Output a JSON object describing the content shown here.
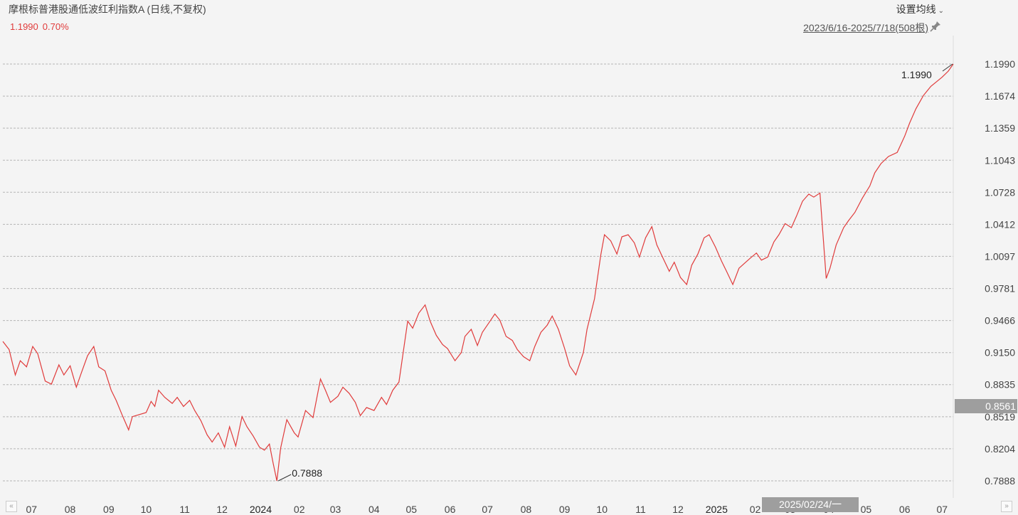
{
  "header": {
    "title": "摩根标普港股通低波红利指数A (日线,不复权)",
    "last_price": "1.1990",
    "change_pct": "0.70%",
    "settings_label": "设置均线",
    "range_label": "2023/6/16-2025/7/18(508根)"
  },
  "colors": {
    "line": "#e03b3b",
    "grid": "#b5b5b5",
    "cursor": "#9e9e9e"
  },
  "icons": {
    "pin": "pin-icon",
    "settings": "chevron-down-icon",
    "prev": "double-chevron-left-icon",
    "next": "double-chevron-right-icon"
  },
  "cursor": {
    "date_label": "2025/02/24/一",
    "price_label": "0.8561"
  },
  "chart_data": {
    "type": "line",
    "title": "摩根标普港股通低波红利指数A",
    "x_range": [
      "2023-06-16",
      "2025-07-18"
    ],
    "ylim": [
      0.7888,
      1.199
    ],
    "y_ticks": [
      "1.1990",
      "1.1674",
      "1.1359",
      "1.1043",
      "1.0728",
      "1.0412",
      "1.0097",
      "0.9781",
      "0.9466",
      "0.9150",
      "0.8835",
      "0.8519",
      "0.8204",
      "0.7888"
    ],
    "x_ticks": [
      "07",
      "08",
      "09",
      "10",
      "11",
      "12",
      "2024",
      "02",
      "03",
      "04",
      "05",
      "06",
      "07",
      "08",
      "09",
      "10",
      "11",
      "12",
      "2025",
      "02",
      "03",
      "04",
      "05",
      "06",
      "07"
    ],
    "annotations": [
      {
        "label": "0.7888",
        "date": "2024-01-22",
        "value": 0.7888
      },
      {
        "label": "1.1990",
        "date": "2025-07-18",
        "value": 1.199
      }
    ],
    "series": [
      {
        "values": [
          [
            "2023-06-16",
            0.926
          ],
          [
            "2023-06-21",
            0.918
          ],
          [
            "2023-06-26",
            0.893
          ],
          [
            "2023-06-30",
            0.907
          ],
          [
            "2023-07-05",
            0.901
          ],
          [
            "2023-07-10",
            0.921
          ],
          [
            "2023-07-14",
            0.914
          ],
          [
            "2023-07-20",
            0.887
          ],
          [
            "2023-07-25",
            0.884
          ],
          [
            "2023-07-31",
            0.903
          ],
          [
            "2023-08-04",
            0.893
          ],
          [
            "2023-08-09",
            0.902
          ],
          [
            "2023-08-14",
            0.881
          ],
          [
            "2023-08-18",
            0.895
          ],
          [
            "2023-08-23",
            0.912
          ],
          [
            "2023-08-28",
            0.921
          ],
          [
            "2023-09-01",
            0.901
          ],
          [
            "2023-09-06",
            0.897
          ],
          [
            "2023-09-11",
            0.878
          ],
          [
            "2023-09-15",
            0.868
          ],
          [
            "2023-09-20",
            0.853
          ],
          [
            "2023-09-25",
            0.839
          ],
          [
            "2023-09-28",
            0.852
          ],
          [
            "2023-10-09",
            0.856
          ],
          [
            "2023-10-13",
            0.867
          ],
          [
            "2023-10-16",
            0.862
          ],
          [
            "2023-10-19",
            0.878
          ],
          [
            "2023-10-24",
            0.871
          ],
          [
            "2023-10-30",
            0.865
          ],
          [
            "2023-11-03",
            0.871
          ],
          [
            "2023-11-08",
            0.862
          ],
          [
            "2023-11-13",
            0.868
          ],
          [
            "2023-11-17",
            0.858
          ],
          [
            "2023-11-22",
            0.848
          ],
          [
            "2023-11-27",
            0.834
          ],
          [
            "2023-12-01",
            0.827
          ],
          [
            "2023-12-06",
            0.836
          ],
          [
            "2023-12-11",
            0.822
          ],
          [
            "2023-12-15",
            0.842
          ],
          [
            "2023-12-20",
            0.823
          ],
          [
            "2023-12-25",
            0.852
          ],
          [
            "2023-12-29",
            0.842
          ],
          [
            "2024-01-03",
            0.833
          ],
          [
            "2024-01-08",
            0.822
          ],
          [
            "2024-01-12",
            0.819
          ],
          [
            "2024-01-16",
            0.825
          ],
          [
            "2024-01-19",
            0.806
          ],
          [
            "2024-01-22",
            0.7888
          ],
          [
            "2024-01-25",
            0.821
          ],
          [
            "2024-01-30",
            0.849
          ],
          [
            "2024-02-05",
            0.836
          ],
          [
            "2024-02-08",
            0.832
          ],
          [
            "2024-02-14",
            0.858
          ],
          [
            "2024-02-20",
            0.851
          ],
          [
            "2024-02-26",
            0.889
          ],
          [
            "2024-03-01",
            0.878
          ],
          [
            "2024-03-05",
            0.866
          ],
          [
            "2024-03-11",
            0.872
          ],
          [
            "2024-03-15",
            0.881
          ],
          [
            "2024-03-20",
            0.875
          ],
          [
            "2024-03-25",
            0.866
          ],
          [
            "2024-03-29",
            0.853
          ],
          [
            "2024-04-03",
            0.861
          ],
          [
            "2024-04-09",
            0.858
          ],
          [
            "2024-04-15",
            0.871
          ],
          [
            "2024-04-19",
            0.864
          ],
          [
            "2024-04-24",
            0.878
          ],
          [
            "2024-04-29",
            0.886
          ],
          [
            "2024-05-06",
            0.946
          ],
          [
            "2024-05-10",
            0.939
          ],
          [
            "2024-05-15",
            0.954
          ],
          [
            "2024-05-20",
            0.962
          ],
          [
            "2024-05-24",
            0.946
          ],
          [
            "2024-05-29",
            0.932
          ],
          [
            "2024-06-03",
            0.923
          ],
          [
            "2024-06-07",
            0.919
          ],
          [
            "2024-06-13",
            0.907
          ],
          [
            "2024-06-18",
            0.915
          ],
          [
            "2024-06-21",
            0.931
          ],
          [
            "2024-06-26",
            0.938
          ],
          [
            "2024-07-01",
            0.922
          ],
          [
            "2024-07-05",
            0.935
          ],
          [
            "2024-07-10",
            0.944
          ],
          [
            "2024-07-15",
            0.953
          ],
          [
            "2024-07-19",
            0.947
          ],
          [
            "2024-07-24",
            0.931
          ],
          [
            "2024-07-29",
            0.927
          ],
          [
            "2024-08-02",
            0.918
          ],
          [
            "2024-08-07",
            0.911
          ],
          [
            "2024-08-12",
            0.907
          ],
          [
            "2024-08-16",
            0.921
          ],
          [
            "2024-08-21",
            0.935
          ],
          [
            "2024-08-26",
            0.942
          ],
          [
            "2024-08-30",
            0.951
          ],
          [
            "2024-09-04",
            0.938
          ],
          [
            "2024-09-09",
            0.919
          ],
          [
            "2024-09-13",
            0.902
          ],
          [
            "2024-09-18",
            0.893
          ],
          [
            "2024-09-24",
            0.915
          ],
          [
            "2024-09-27",
            0.938
          ],
          [
            "2024-10-03",
            0.968
          ],
          [
            "2024-10-08",
            1.011
          ],
          [
            "2024-10-11",
            1.031
          ],
          [
            "2024-10-16",
            1.025
          ],
          [
            "2024-10-21",
            1.012
          ],
          [
            "2024-10-25",
            1.029
          ],
          [
            "2024-10-30",
            1.031
          ],
          [
            "2024-11-04",
            1.023
          ],
          [
            "2024-11-08",
            1.009
          ],
          [
            "2024-11-13",
            1.028
          ],
          [
            "2024-11-18",
            1.039
          ],
          [
            "2024-11-22",
            1.021
          ],
          [
            "2024-11-27",
            1.008
          ],
          [
            "2024-12-02",
            0.995
          ],
          [
            "2024-12-06",
            1.004
          ],
          [
            "2024-12-11",
            0.989
          ],
          [
            "2024-12-16",
            0.982
          ],
          [
            "2024-12-20",
            1.001
          ],
          [
            "2024-12-25",
            1.012
          ],
          [
            "2024-12-30",
            1.028
          ],
          [
            "2025-01-03",
            1.031
          ],
          [
            "2025-01-08",
            1.019
          ],
          [
            "2025-01-13",
            1.005
          ],
          [
            "2025-01-17",
            0.995
          ],
          [
            "2025-01-22",
            0.982
          ],
          [
            "2025-01-27",
            0.998
          ],
          [
            "2025-02-05",
            1.008
          ],
          [
            "2025-02-10",
            1.013
          ],
          [
            "2025-02-14",
            1.006
          ],
          [
            "2025-02-19",
            1.009
          ],
          [
            "2025-02-24",
            1.024
          ],
          [
            "2025-02-28",
            1.031
          ],
          [
            "2025-03-05",
            1.042
          ],
          [
            "2025-03-10",
            1.038
          ],
          [
            "2025-03-14",
            1.049
          ],
          [
            "2025-03-19",
            1.064
          ],
          [
            "2025-03-24",
            1.071
          ],
          [
            "2025-03-28",
            1.068
          ],
          [
            "2025-04-02",
            1.072
          ],
          [
            "2025-04-07",
            0.988
          ],
          [
            "2025-04-10",
            0.998
          ],
          [
            "2025-04-15",
            1.021
          ],
          [
            "2025-04-21",
            1.038
          ],
          [
            "2025-04-25",
            1.045
          ],
          [
            "2025-04-30",
            1.053
          ],
          [
            "2025-05-06",
            1.067
          ],
          [
            "2025-05-12",
            1.079
          ],
          [
            "2025-05-16",
            1.092
          ],
          [
            "2025-05-21",
            1.101
          ],
          [
            "2025-05-27",
            1.108
          ],
          [
            "2025-06-03",
            1.112
          ],
          [
            "2025-06-09",
            1.128
          ],
          [
            "2025-06-13",
            1.141
          ],
          [
            "2025-06-18",
            1.155
          ],
          [
            "2025-06-24",
            1.168
          ],
          [
            "2025-06-30",
            1.177
          ],
          [
            "2025-07-04",
            1.181
          ],
          [
            "2025-07-09",
            1.186
          ],
          [
            "2025-07-14",
            1.192
          ],
          [
            "2025-07-18",
            1.199
          ]
        ]
      }
    ]
  }
}
